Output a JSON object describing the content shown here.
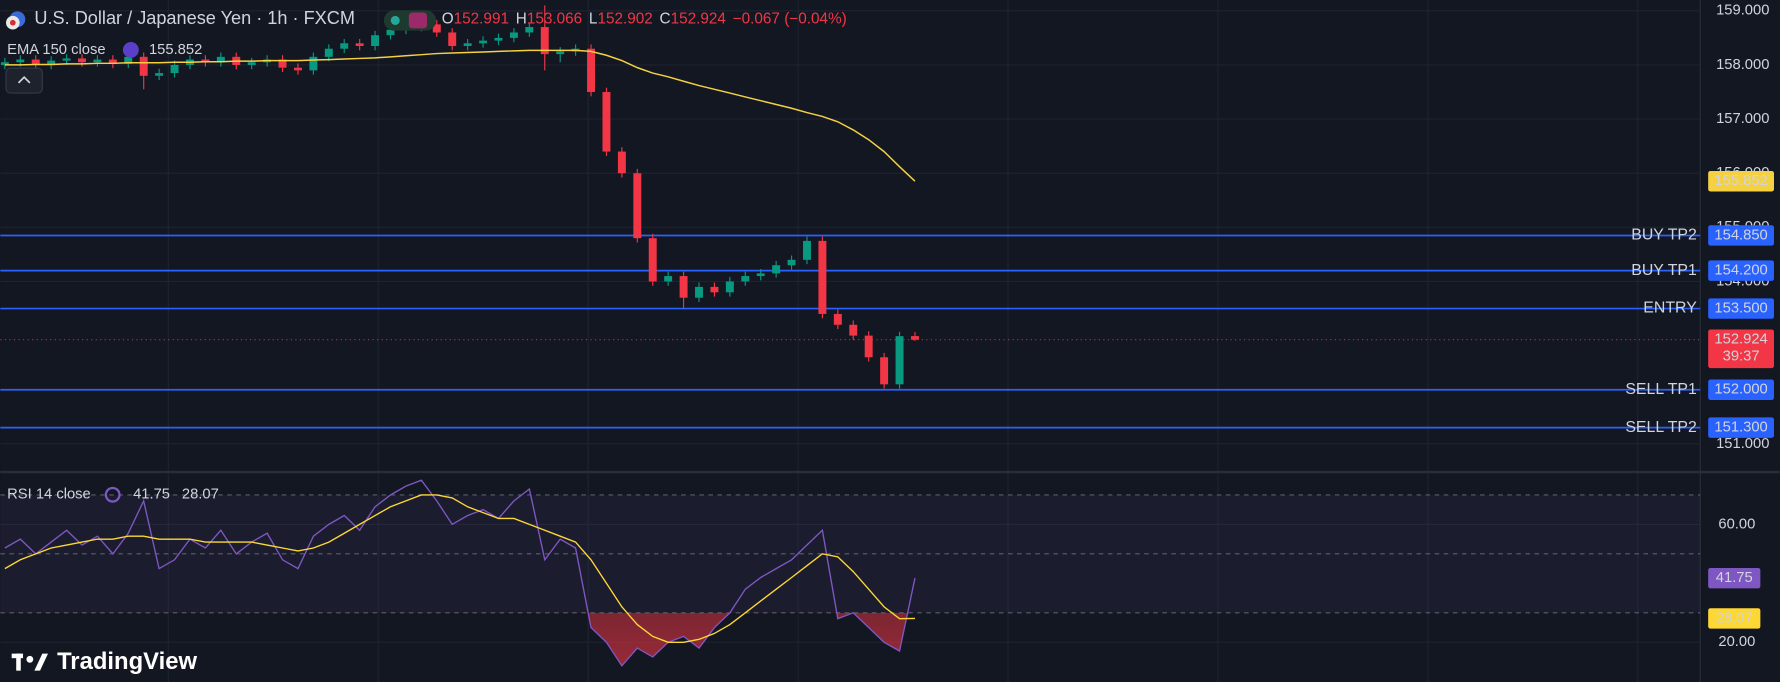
{
  "chart_data": {
    "type": "candlestick",
    "title": "U.S. Dollar / Japanese Yen · 1h · FXCM",
    "ohlc_keys": [
      "O",
      "H",
      "L",
      "C"
    ],
    "change_label": "−0.067 (−0.04%)",
    "countdown": "39:37",
    "brand": "TradingView",
    "up_color": "#089981",
    "down_color": "#f23645",
    "ylim": [
      150.5,
      159.2
    ],
    "yticks": [
      {
        "value": 151,
        "label": "151.000"
      },
      {
        "value": 154,
        "label": "154.000"
      },
      {
        "value": 155,
        "label": "155.000"
      },
      {
        "value": 156,
        "label": "156.000"
      },
      {
        "value": 157,
        "label": "157.000"
      },
      {
        "value": 158,
        "label": "158.000"
      },
      {
        "value": 159,
        "label": "159.000"
      }
    ],
    "grid": true,
    "candles": {
      "open": [
        158.0,
        158.05,
        158.1,
        158.0,
        158.08,
        158.12,
        158.05,
        158.1,
        158.02,
        158.15,
        157.8,
        157.85,
        158.0,
        158.1,
        158.05,
        158.15,
        158.0,
        158.05,
        158.1,
        157.95,
        157.9,
        158.15,
        158.3,
        158.4,
        158.35,
        158.55,
        158.65,
        158.7,
        158.75,
        158.6,
        158.35,
        158.4,
        158.45,
        158.5,
        158.6,
        158.7,
        158.2,
        158.25,
        158.3,
        157.5,
        156.4,
        156.0,
        154.8,
        154.0,
        154.1,
        153.7,
        153.9,
        153.8,
        154.0,
        154.1,
        154.15,
        154.3,
        154.4,
        154.75,
        153.4,
        153.2,
        153.0,
        152.6,
        152.1,
        152.991
      ],
      "high": [
        158.13,
        158.18,
        158.18,
        158.16,
        158.2,
        158.2,
        158.18,
        158.18,
        158.23,
        158.23,
        157.93,
        158.08,
        158.18,
        158.18,
        158.23,
        158.23,
        158.13,
        158.18,
        158.18,
        158.03,
        158.23,
        158.38,
        158.48,
        158.48,
        158.63,
        158.73,
        158.78,
        158.83,
        158.83,
        158.68,
        158.48,
        158.53,
        158.58,
        158.68,
        158.78,
        159.1,
        158.33,
        158.38,
        158.38,
        157.58,
        156.48,
        156.08,
        154.88,
        154.18,
        154.18,
        153.98,
        153.98,
        154.08,
        154.18,
        154.23,
        154.38,
        154.48,
        154.83,
        154.83,
        153.48,
        153.28,
        153.08,
        152.68,
        153.07,
        153.066
      ],
      "low": [
        157.92,
        157.97,
        157.92,
        157.92,
        158.0,
        157.97,
        157.97,
        157.94,
        157.94,
        157.55,
        157.72,
        157.77,
        157.92,
        157.97,
        157.97,
        157.92,
        157.92,
        157.97,
        157.87,
        157.82,
        157.82,
        158.07,
        158.22,
        158.27,
        158.27,
        158.47,
        158.57,
        158.62,
        158.52,
        158.27,
        158.27,
        158.32,
        158.37,
        158.42,
        158.52,
        157.9,
        158.05,
        158.17,
        157.42,
        156.32,
        155.92,
        154.72,
        153.92,
        153.92,
        153.5,
        153.62,
        153.72,
        153.72,
        153.92,
        154.02,
        154.07,
        154.22,
        154.32,
        153.32,
        153.12,
        152.92,
        152.52,
        152.02,
        152.02,
        152.902
      ],
      "close": [
        158.05,
        158.1,
        158.0,
        158.08,
        158.12,
        158.05,
        158.1,
        158.02,
        158.15,
        157.8,
        157.85,
        158.0,
        158.1,
        158.05,
        158.15,
        158.0,
        158.05,
        158.1,
        157.95,
        157.9,
        158.15,
        158.3,
        158.4,
        158.35,
        158.55,
        158.65,
        158.7,
        158.75,
        158.6,
        158.35,
        158.4,
        158.45,
        158.5,
        158.6,
        158.7,
        158.2,
        158.25,
        158.3,
        157.5,
        156.4,
        156.0,
        154.8,
        154.0,
        154.1,
        153.7,
        153.9,
        153.8,
        154.0,
        154.1,
        154.15,
        154.3,
        154.4,
        154.75,
        153.4,
        153.2,
        153.0,
        152.6,
        152.1,
        152.99,
        152.924
      ]
    },
    "ema": {
      "name": "EMA 150 close",
      "color": "#f5d142",
      "values": [
        158.0,
        158.0,
        158.01,
        158.01,
        158.02,
        158.02,
        158.03,
        158.03,
        158.04,
        158.04,
        158.04,
        158.05,
        158.05,
        158.06,
        158.06,
        158.07,
        158.07,
        158.08,
        158.08,
        158.08,
        158.09,
        158.1,
        158.11,
        158.12,
        158.13,
        158.15,
        158.17,
        158.19,
        158.21,
        158.22,
        158.23,
        158.24,
        158.25,
        158.26,
        158.27,
        158.27,
        158.27,
        158.27,
        158.25,
        158.18,
        158.08,
        157.95,
        157.85,
        157.78,
        157.7,
        157.62,
        157.55,
        157.48,
        157.41,
        157.34,
        157.27,
        157.2,
        157.12,
        157.05,
        156.95,
        156.8,
        156.62,
        156.4,
        156.12,
        155.852
      ]
    },
    "levels": [
      {
        "name": "BUY TP2",
        "price": {
          "value": 154.85,
          "label": "154.850"
        },
        "color": "#4caf50"
      },
      {
        "name": "BUY TP1",
        "price": {
          "value": 154.2,
          "label": "154.200"
        },
        "color": "#4caf50"
      },
      {
        "name": "ENTRY",
        "price": {
          "value": 153.5,
          "label": "153.500"
        },
        "color": "#ffeb3b"
      },
      {
        "name": "SELL TP1",
        "price": {
          "value": 152.0,
          "label": "152.000"
        },
        "color": "#f23645"
      },
      {
        "name": "SELL TP2",
        "price": {
          "value": 151.3,
          "label": "151.300"
        },
        "color": "#f23645"
      }
    ],
    "level_line_color": "#2962ff",
    "rsi_pane": {
      "title": "RSI 14 close",
      "ylim": [
        6.5,
        77
      ],
      "yticks": [
        {
          "value": 20,
          "label": "20.00"
        },
        {
          "value": 60,
          "label": "60.00"
        }
      ],
      "levels": [
        30,
        50,
        70
      ],
      "rsi": {
        "color": "#7e57c2",
        "values": [
          52,
          55,
          50,
          54,
          58,
          53,
          56,
          50,
          57,
          68,
          45,
          48,
          55,
          52,
          58,
          50,
          54,
          57,
          48,
          45,
          56,
          60,
          63,
          58,
          66,
          70,
          73,
          75,
          68,
          60,
          63,
          65,
          62,
          68,
          72,
          48,
          55,
          52,
          25,
          20,
          12,
          18,
          15,
          20,
          22,
          18,
          25,
          30,
          38,
          42,
          45,
          48,
          53,
          58,
          28,
          30,
          25,
          20,
          17,
          41.75
        ]
      },
      "ma": {
        "color": "#fdd835",
        "values": [
          45,
          48,
          50,
          52,
          53,
          54,
          55,
          55,
          56,
          56,
          55,
          55,
          55,
          54,
          54,
          54,
          54,
          53,
          52,
          51,
          52,
          54,
          57,
          60,
          63,
          66,
          68,
          70,
          70,
          69,
          66,
          64,
          62,
          62,
          60,
          58,
          56,
          54,
          48,
          40,
          32,
          26,
          22,
          20,
          20,
          21,
          23,
          26,
          30,
          34,
          38,
          42,
          46,
          50,
          49,
          44,
          38,
          32,
          28,
          28.07
        ]
      }
    }
  }
}
